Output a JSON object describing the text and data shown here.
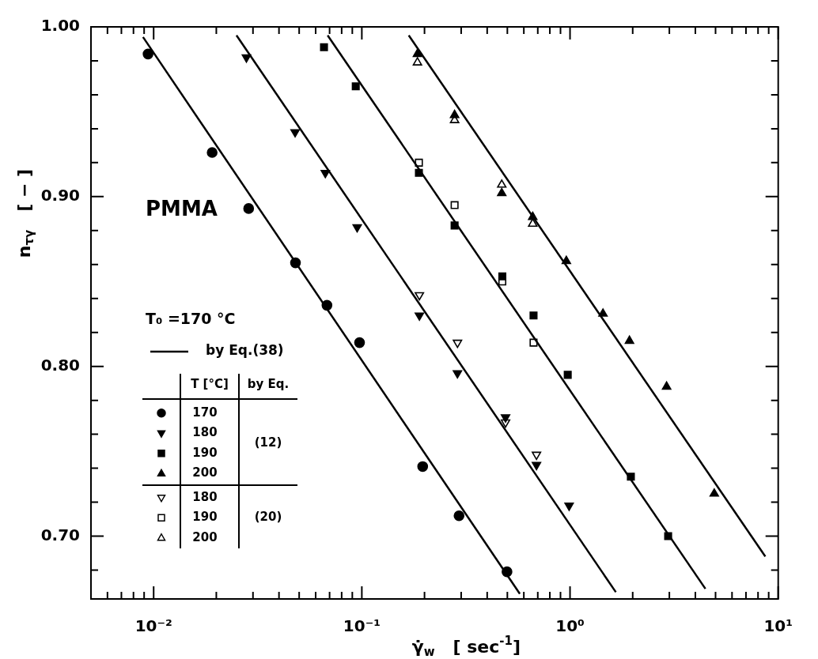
{
  "chart_data": {
    "type": "scatter",
    "xlabel": "γ̇$_{w}$   [ sec$^{-1}$]",
    "ylabel": "n$_{τγ}$   [ − ]",
    "log": "x",
    "grid": false,
    "legend": "left",
    "legend_title": "T [°C]",
    "annotations": [
      "PMMA",
      "T₀ =170 °C",
      "by Eq.",
      "(12)",
      "(20)"
    ],
    "xlim": [
      0.005,
      10
    ],
    "xticks": [
      {
        "value": 0.006,
        "label": null
      },
      {
        "value": 0.007,
        "label": null
      },
      {
        "value": 0.008,
        "label": null
      },
      {
        "value": 0.009,
        "label": null
      },
      {
        "value": 0.01,
        "label": "10⁻²"
      },
      {
        "value": 0.02,
        "label": null
      },
      {
        "value": 0.03,
        "label": null
      },
      {
        "value": 0.04,
        "label": null
      },
      {
        "value": 0.05,
        "label": null
      },
      {
        "value": 0.06,
        "label": null
      },
      {
        "value": 0.07,
        "label": null
      },
      {
        "value": 0.08,
        "label": null
      },
      {
        "value": 0.09,
        "label": null
      },
      {
        "value": 0.1,
        "label": "10⁻¹"
      },
      {
        "value": 0.2,
        "label": null
      },
      {
        "value": 0.3,
        "label": null
      },
      {
        "value": 0.4,
        "label": null
      },
      {
        "value": 0.5,
        "label": null
      },
      {
        "value": 0.6,
        "label": null
      },
      {
        "value": 0.7,
        "label": null
      },
      {
        "value": 0.8,
        "label": null
      },
      {
        "value": 0.9,
        "label": null
      },
      {
        "value": 1,
        "label": "10⁰"
      },
      {
        "value": 2,
        "label": null
      },
      {
        "value": 3,
        "label": null
      },
      {
        "value": 4,
        "label": null
      },
      {
        "value": 5,
        "label": null
      },
      {
        "value": 6,
        "label": null
      },
      {
        "value": 7,
        "label": null
      },
      {
        "value": 8,
        "label": null
      },
      {
        "value": 9,
        "label": null
      },
      {
        "value": 10,
        "label": "10¹"
      }
    ],
    "ylim": [
      0.663,
      1.0
    ],
    "yticks": [
      {
        "value": 0.68,
        "label": null
      },
      {
        "value": 0.7,
        "label": "0.70"
      },
      {
        "value": 0.72,
        "label": null
      },
      {
        "value": 0.74,
        "label": null
      },
      {
        "value": 0.76,
        "label": null
      },
      {
        "value": 0.78,
        "label": null
      },
      {
        "value": 0.8,
        "label": "0.80"
      },
      {
        "value": 0.82,
        "label": null
      },
      {
        "value": 0.84,
        "label": null
      },
      {
        "value": 0.86,
        "label": null
      },
      {
        "value": 0.88,
        "label": null
      },
      {
        "value": 0.9,
        "label": "0.90"
      },
      {
        "value": 0.92,
        "label": null
      },
      {
        "value": 0.94,
        "label": null
      },
      {
        "value": 0.96,
        "label": null
      },
      {
        "value": 0.98,
        "label": null
      },
      {
        "value": 1.0,
        "label": "1.00"
      }
    ],
    "series": [
      {
        "name": "by Eq.(38)",
        "type": "line",
        "color": "#000000",
        "marker": "none",
        "line_style": "solid",
        "x": [
          0.00889,
          0.574
        ],
        "values": [
          0.994,
          0.666
        ]
      },
      {
        "type": "line",
        "color": "#000000",
        "marker": "none",
        "line_style": "solid",
        "x": [
          0.025,
          1.66
        ],
        "values": [
          0.995,
          0.667
        ]
      },
      {
        "type": "line",
        "color": "#000000",
        "marker": "none",
        "line_style": "solid",
        "x": [
          0.0685,
          4.47
        ],
        "values": [
          0.995,
          0.669
        ]
      },
      {
        "type": "line",
        "color": "#000000",
        "marker": "none",
        "line_style": "solid",
        "x": [
          0.168,
          8.67
        ],
        "values": [
          0.995,
          0.688
        ]
      },
      {
        "name": "170",
        "color": "#000000",
        "marker": "circle",
        "x": [
          0.0094,
          0.0191,
          0.0286,
          0.048,
          0.068,
          0.0975,
          0.196,
          0.293,
          0.498
        ],
        "values": [
          0.984,
          0.926,
          0.893,
          0.861,
          0.836,
          0.814,
          0.741,
          0.712,
          0.679
        ]
      },
      {
        "name": "180",
        "color": "#000000",
        "marker": "triangle-down",
        "x": [
          0.0279,
          0.0478,
          0.0668,
          0.095,
          0.189,
          0.288,
          0.49,
          0.69,
          0.99
        ],
        "values": [
          0.982,
          0.938,
          0.914,
          0.882,
          0.83,
          0.796,
          0.77,
          0.742,
          0.718
        ]
      },
      {
        "name": "190",
        "color": "#000000",
        "marker": "square",
        "x": [
          0.0658,
          0.0935,
          0.188,
          0.279,
          0.473,
          0.668,
          0.975,
          1.96,
          2.96
        ],
        "values": [
          0.988,
          0.965,
          0.914,
          0.883,
          0.853,
          0.83,
          0.795,
          0.735,
          0.7
        ]
      },
      {
        "name": "200",
        "color": "#000000",
        "marker": "triangle",
        "x": [
          0.185,
          0.279,
          0.47,
          0.662,
          0.96,
          1.44,
          1.93,
          2.91,
          4.93
        ],
        "values": [
          0.984,
          0.948,
          0.902,
          0.888,
          0.862,
          0.831,
          0.815,
          0.788,
          0.725
        ]
      },
      {
        "name": "180",
        "color": "#000000",
        "marker": "triangle-down-open",
        "x": [
          0.189,
          0.288,
          0.49,
          0.69
        ],
        "values": [
          0.842,
          0.814,
          0.767,
          0.748
        ]
      },
      {
        "name": "190",
        "color": "#000000",
        "marker": "square-open",
        "x": [
          0.188,
          0.279,
          0.473,
          0.668
        ],
        "values": [
          0.92,
          0.895,
          0.85,
          0.814
        ]
      },
      {
        "name": "200",
        "color": "#000000",
        "marker": "triangle-open",
        "x": [
          0.185,
          0.279,
          0.47,
          0.662
        ],
        "values": [
          0.979,
          0.945,
          0.907,
          0.884
        ]
      }
    ]
  }
}
